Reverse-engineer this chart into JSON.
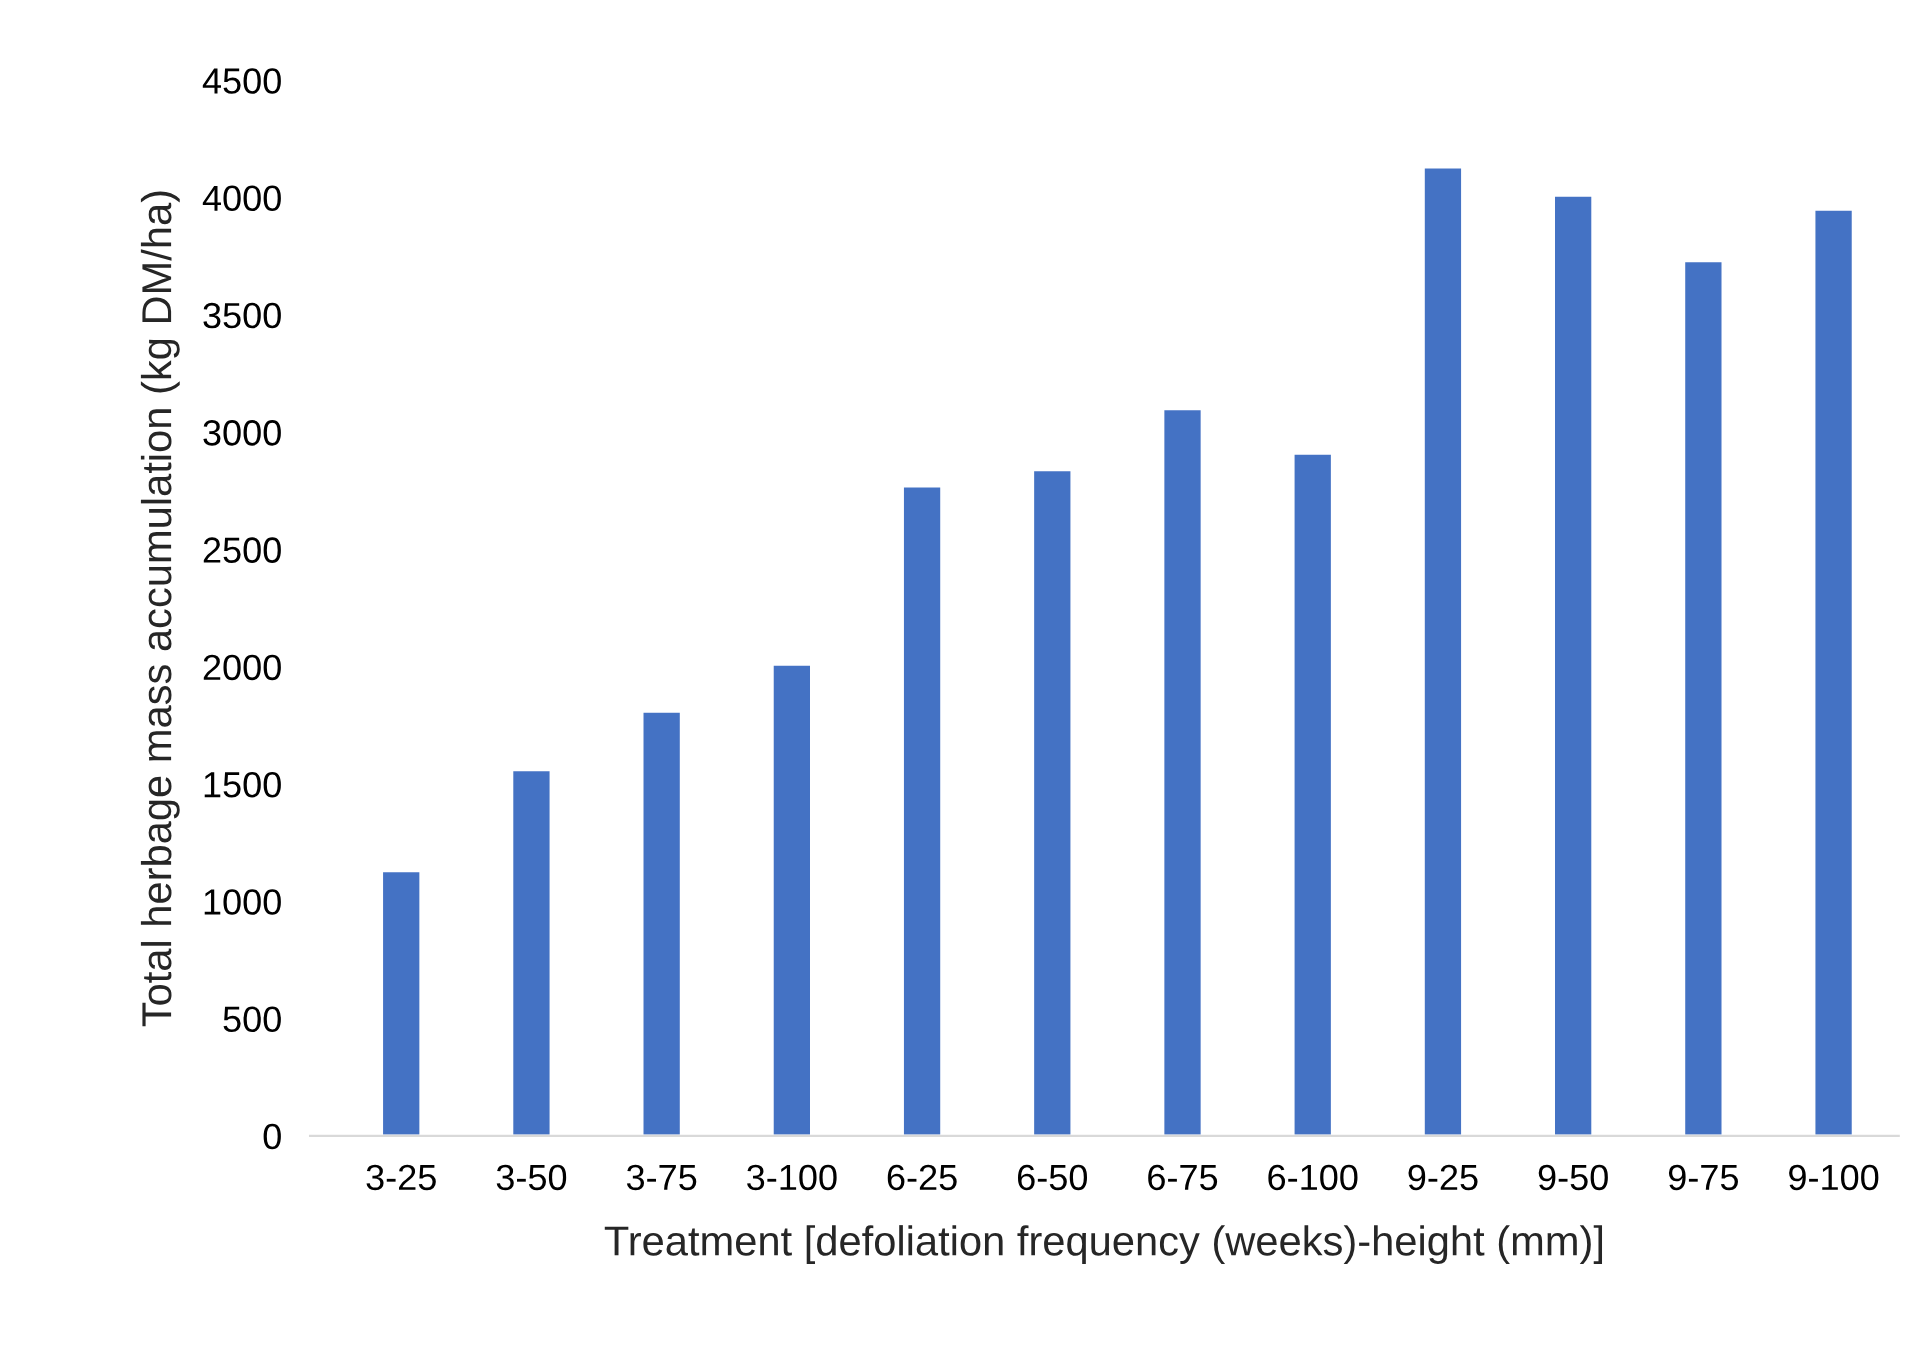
{
  "chart_data": {
    "type": "bar",
    "xlabel": "Treatment [defoliation frequency (weeks)-height (mm)]",
    "ylabel": "Total herbage mass accumulation (kg DM/ha)",
    "categories": [
      "3-25",
      "3-50",
      "3-75",
      "3-100",
      "6-25",
      "6-50",
      "6-75",
      "6-100",
      "9-25",
      "9-50",
      "9-75",
      "9-100"
    ],
    "values": [
      1130,
      1560,
      1810,
      2010,
      2770,
      2840,
      3100,
      2910,
      4130,
      4010,
      3730,
      3950
    ],
    "color": "#4472c4",
    "ylim": [
      0,
      4500
    ],
    "yticks": [
      0,
      500,
      1000,
      1500,
      2000,
      2500,
      3000,
      3500,
      4000,
      4500
    ],
    "grid": false,
    "legend": false
  }
}
